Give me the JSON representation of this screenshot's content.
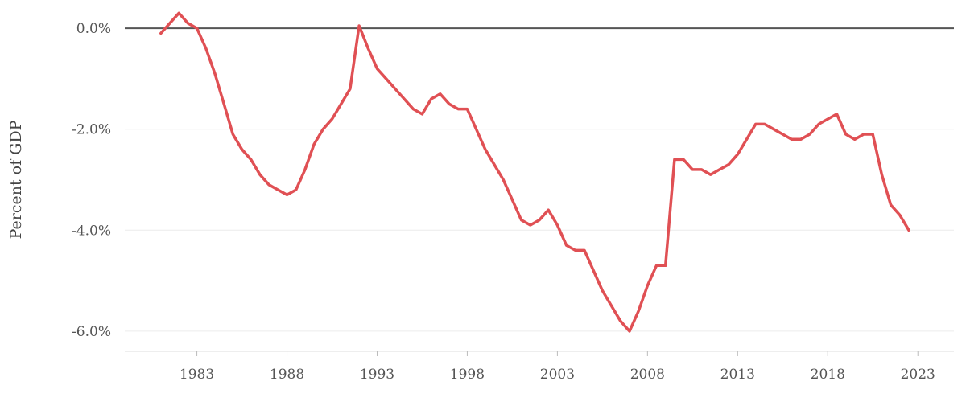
{
  "chart_data": {
    "type": "line",
    "title": "",
    "xlabel": "",
    "ylabel": "Percent of GDP",
    "xlim": [
      1979.0,
      2025.0
    ],
    "ylim": [
      -6.4,
      0.4
    ],
    "y_ticks": [
      0,
      -2,
      -4,
      -6
    ],
    "y_tick_labels": [
      "0.0%",
      "-2.0%",
      "-4.0%",
      "-6.0%"
    ],
    "x_ticks": [
      1983,
      1988,
      1993,
      1998,
      2003,
      2008,
      2013,
      2018,
      2023
    ],
    "x_tick_labels": [
      "1983",
      "1988",
      "1993",
      "1998",
      "2003",
      "2008",
      "2013",
      "2018",
      "2023"
    ],
    "reference_line": 0,
    "grid": true,
    "series": [
      {
        "color": "#e05054",
        "x": [
          1981.0,
          1981.5,
          1982.0,
          1982.5,
          1983.0,
          1983.5,
          1984.0,
          1984.5,
          1985.0,
          1985.5,
          1986.0,
          1986.5,
          1987.0,
          1987.5,
          1988.0,
          1988.5,
          1989.0,
          1989.5,
          1990.0,
          1990.5,
          1991.0,
          1991.5,
          1992.0,
          1992.5,
          1993.0,
          1993.5,
          1994.0,
          1994.5,
          1995.0,
          1995.5,
          1996.0,
          1996.5,
          1997.0,
          1997.5,
          1998.0,
          1998.5,
          1999.0,
          1999.5,
          2000.0,
          2000.5,
          2001.0,
          2001.5,
          2002.0,
          2002.5,
          2003.0,
          2003.5,
          2004.0,
          2004.5,
          2005.0,
          2005.5,
          2006.0,
          2006.5,
          2007.0,
          2007.5,
          2008.0,
          2008.5,
          2009.0,
          2009.5,
          2010.0,
          2010.5,
          2011.0,
          2011.5,
          2012.0,
          2012.5,
          2013.0,
          2013.5,
          2014.0,
          2014.5,
          2015.0,
          2015.5,
          2016.0,
          2016.5,
          2017.0,
          2017.5,
          2018.0,
          2018.5,
          2019.0,
          2019.5,
          2020.0,
          2020.5,
          2021.0,
          2021.5,
          2022.0,
          2022.5
        ],
        "values": [
          -0.1,
          0.1,
          0.3,
          0.1,
          0.0,
          -0.4,
          -0.9,
          -1.5,
          -2.1,
          -2.4,
          -2.6,
          -2.9,
          -3.1,
          -3.2,
          -3.3,
          -3.2,
          -2.8,
          -2.3,
          -2.0,
          -1.8,
          -1.5,
          -1.2,
          0.05,
          -0.4,
          -0.8,
          -1.0,
          -1.2,
          -1.4,
          -1.6,
          -1.7,
          -1.4,
          -1.3,
          -1.5,
          -1.6,
          -1.6,
          -2.0,
          -2.4,
          -2.7,
          -3.0,
          -3.4,
          -3.8,
          -3.9,
          -3.8,
          -3.6,
          -3.9,
          -4.3,
          -4.4,
          -4.4,
          -4.8,
          -5.2,
          -5.5,
          -5.8,
          -6.0,
          -5.6,
          -5.1,
          -4.7,
          -4.7,
          -2.6,
          -2.6,
          -2.8,
          -2.8,
          -2.9,
          -2.8,
          -2.7,
          -2.5,
          -2.2,
          -1.9,
          -1.9,
          -2.0,
          -2.1,
          -2.2,
          -2.2,
          -2.1,
          -1.9,
          -1.8,
          -1.7,
          -2.1,
          -2.2,
          -2.1,
          -2.1,
          -2.9,
          -3.5,
          -3.7,
          -4.0
        ]
      }
    ]
  }
}
